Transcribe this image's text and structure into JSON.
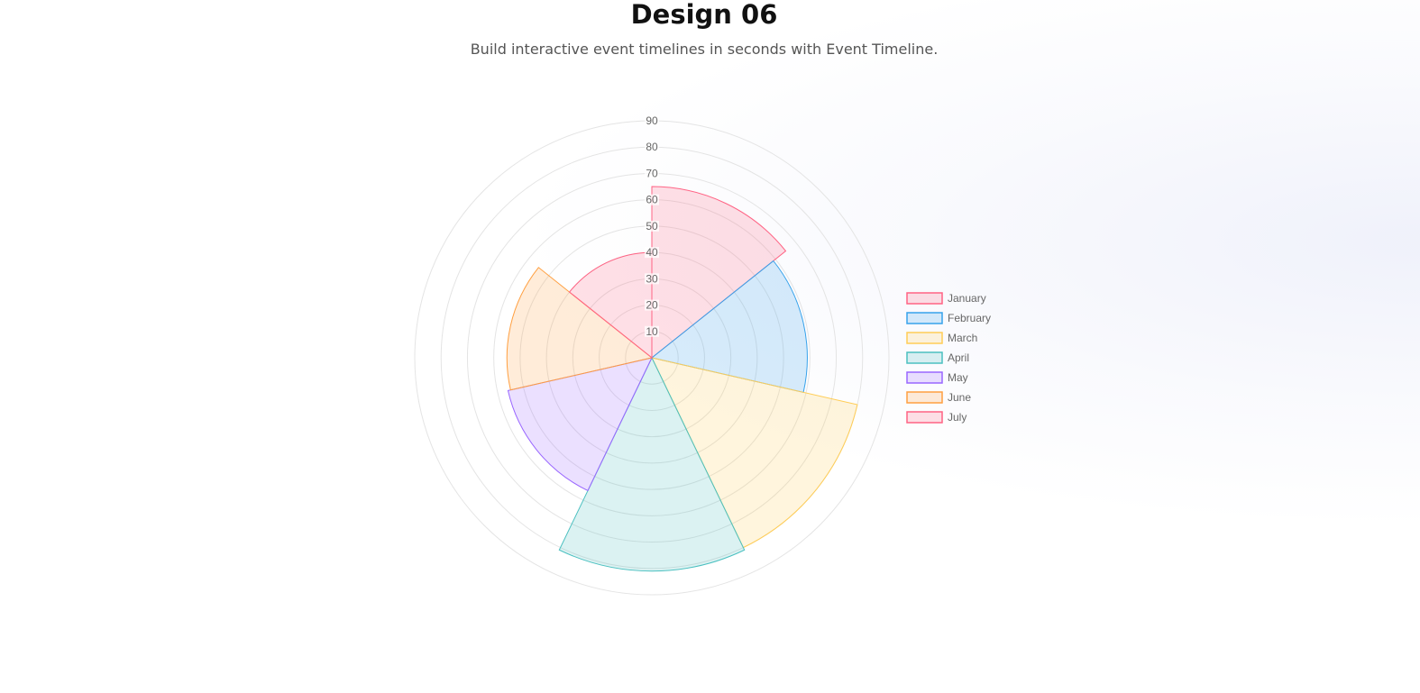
{
  "page": {
    "title": "Design 06",
    "subtitle": "Build interactive event timelines in seconds with Event Timeline."
  },
  "chart_data": {
    "type": "polarArea",
    "title": "",
    "categories": [
      "January",
      "February",
      "March",
      "April",
      "May",
      "June",
      "July"
    ],
    "values": [
      65,
      59,
      80,
      81,
      56,
      55,
      40
    ],
    "rlim": [
      0,
      90
    ],
    "ticks": [
      10,
      20,
      30,
      40,
      50,
      60,
      70,
      80,
      90
    ],
    "grid": true,
    "legend": "right",
    "colors": {
      "fill": [
        "rgba(255,99,132,0.2)",
        "rgba(54,162,235,0.2)",
        "rgba(255,205,86,0.2)",
        "rgba(75,192,192,0.2)",
        "rgba(153,102,255,0.2)",
        "rgba(255,159,64,0.2)",
        "rgba(255,99,132,0.2)"
      ],
      "border": [
        "#ff6384",
        "#36a2eb",
        "#ffcd56",
        "#4bc0c0",
        "#9966ff",
        "#ff9f40",
        "#ff6384"
      ]
    }
  }
}
